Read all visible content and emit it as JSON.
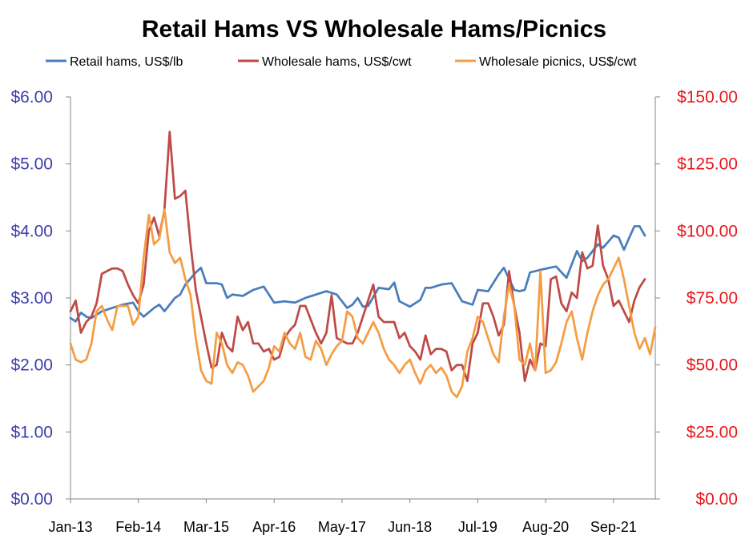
{
  "chart_data": {
    "type": "line",
    "title": "Retail Hams VS Wholesale Hams/Picnics",
    "x_tick_labels": [
      "Jan-13",
      "Feb-14",
      "Mar-15",
      "Apr-16",
      "May-17",
      "Jun-18",
      "Jul-19",
      "Aug-20",
      "Sep-21"
    ],
    "x_range": [
      "Jan-13",
      "May-22"
    ],
    "grid": false,
    "legend_position": "top",
    "y_left": {
      "range": [
        0,
        6
      ],
      "tick_labels": [
        "$0.00",
        "$1.00",
        "$2.00",
        "$3.00",
        "$4.00",
        "$5.00",
        "$6.00"
      ],
      "color": "#3d3dab"
    },
    "y_right": {
      "range": [
        0,
        150
      ],
      "tick_labels": [
        "$0.00",
        "$25.00",
        "$50.00",
        "$75.00",
        "$100.00",
        "$125.00",
        "$150.00"
      ],
      "color": "#e8151b"
    },
    "series": [
      {
        "name": "Retail hams, US$/lb",
        "axis": "left",
        "color": "#4a7ebb",
        "points": [
          [
            "Jan-13",
            2.7
          ],
          [
            "Feb-13",
            2.65
          ],
          [
            "Mar-13",
            2.78
          ],
          [
            "Apr-13",
            2.72
          ],
          [
            "May-13",
            2.7
          ],
          [
            "Jul-13",
            2.8
          ],
          [
            "Sep-13",
            2.85
          ],
          [
            "Nov-13",
            2.9
          ],
          [
            "Jan-14",
            2.93
          ],
          [
            "Feb-14",
            2.8
          ],
          [
            "Mar-14",
            2.72
          ],
          [
            "May-14",
            2.85
          ],
          [
            "Jun-14",
            2.9
          ],
          [
            "Jul-14",
            2.8
          ],
          [
            "Sep-14",
            3.0
          ],
          [
            "Oct-14",
            3.05
          ],
          [
            "Nov-14",
            3.2
          ],
          [
            "Jan-15",
            3.38
          ],
          [
            "Feb-15",
            3.45
          ],
          [
            "Mar-15",
            3.22
          ],
          [
            "May-15",
            3.22
          ],
          [
            "Jun-15",
            3.2
          ],
          [
            "Jul-15",
            3.0
          ],
          [
            "Aug-15",
            3.05
          ],
          [
            "Oct-15",
            3.03
          ],
          [
            "Dec-15",
            3.12
          ],
          [
            "Feb-16",
            3.17
          ],
          [
            "Mar-16",
            3.05
          ],
          [
            "Apr-16",
            2.93
          ],
          [
            "Jun-16",
            2.95
          ],
          [
            "Aug-16",
            2.93
          ],
          [
            "Oct-16",
            3.0
          ],
          [
            "Dec-16",
            3.05
          ],
          [
            "Feb-17",
            3.1
          ],
          [
            "Apr-17",
            3.05
          ],
          [
            "Jun-17",
            2.85
          ],
          [
            "Jul-17",
            2.9
          ],
          [
            "Aug-17",
            3.0
          ],
          [
            "Sep-17",
            2.87
          ],
          [
            "Oct-17",
            2.88
          ],
          [
            "Dec-17",
            3.15
          ],
          [
            "Feb-18",
            3.13
          ],
          [
            "Mar-18",
            3.23
          ],
          [
            "Apr-18",
            2.95
          ],
          [
            "Jun-18",
            2.87
          ],
          [
            "Aug-18",
            2.97
          ],
          [
            "Sep-18",
            3.15
          ],
          [
            "Oct-18",
            3.15
          ],
          [
            "Dec-18",
            3.2
          ],
          [
            "Feb-19",
            3.22
          ],
          [
            "Apr-19",
            2.95
          ],
          [
            "Jun-19",
            2.9
          ],
          [
            "Jul-19",
            3.12
          ],
          [
            "Sep-19",
            3.1
          ],
          [
            "Nov-19",
            3.35
          ],
          [
            "Dec-19",
            3.45
          ],
          [
            "Feb-20",
            3.12
          ],
          [
            "Mar-20",
            3.1
          ],
          [
            "Apr-20",
            3.12
          ],
          [
            "May-20",
            3.38
          ],
          [
            "Jul-20",
            3.42
          ],
          [
            "Oct-20",
            3.47
          ],
          [
            "Dec-20",
            3.3
          ],
          [
            "Feb-21",
            3.7
          ],
          [
            "Mar-21",
            3.55
          ],
          [
            "Apr-21",
            3.6
          ],
          [
            "Jun-21",
            3.8
          ],
          [
            "Jul-21",
            3.75
          ],
          [
            "Sep-21",
            3.93
          ],
          [
            "Oct-21",
            3.9
          ],
          [
            "Nov-21",
            3.72
          ],
          [
            "Jan-22",
            4.07
          ],
          [
            "Feb-22",
            4.07
          ],
          [
            "Mar-22",
            3.93
          ]
        ]
      },
      {
        "name": "Wholesale hams, US$/cwt",
        "axis": "right",
        "color": "#be4b48",
        "points": [
          [
            "Jan-13",
            70
          ],
          [
            "Feb-13",
            74
          ],
          [
            "Mar-13",
            62
          ],
          [
            "Apr-13",
            66
          ],
          [
            "May-13",
            68
          ],
          [
            "Jun-13",
            73
          ],
          [
            "Jul-13",
            84
          ],
          [
            "Aug-13",
            85
          ],
          [
            "Sep-13",
            86
          ],
          [
            "Oct-13",
            86
          ],
          [
            "Nov-13",
            85
          ],
          [
            "Dec-13",
            80
          ],
          [
            "Jan-14",
            76
          ],
          [
            "Feb-14",
            73
          ],
          [
            "Mar-14",
            80
          ],
          [
            "Apr-14",
            100
          ],
          [
            "May-14",
            105
          ],
          [
            "Jun-14",
            98
          ],
          [
            "Jul-14",
            108
          ],
          [
            "Aug-14",
            137
          ],
          [
            "Sep-14",
            112
          ],
          [
            "Oct-14",
            113
          ],
          [
            "Nov-14",
            115
          ],
          [
            "Dec-14",
            95
          ],
          [
            "Jan-15",
            78
          ],
          [
            "Feb-15",
            68
          ],
          [
            "Mar-15",
            58
          ],
          [
            "Apr-15",
            49
          ],
          [
            "May-15",
            50
          ],
          [
            "Jun-15",
            62
          ],
          [
            "Jul-15",
            57
          ],
          [
            "Aug-15",
            55
          ],
          [
            "Sep-15",
            68
          ],
          [
            "Oct-15",
            63
          ],
          [
            "Nov-15",
            66
          ],
          [
            "Dec-15",
            58
          ],
          [
            "Jan-16",
            58
          ],
          [
            "Feb-16",
            55
          ],
          [
            "Mar-16",
            56
          ],
          [
            "Apr-16",
            52
          ],
          [
            "May-16",
            53
          ],
          [
            "Jun-16",
            60
          ],
          [
            "Jul-16",
            63
          ],
          [
            "Aug-16",
            65
          ],
          [
            "Sep-16",
            72
          ],
          [
            "Oct-16",
            72
          ],
          [
            "Nov-16",
            67
          ],
          [
            "Dec-16",
            62
          ],
          [
            "Jan-17",
            58
          ],
          [
            "Feb-17",
            62
          ],
          [
            "Mar-17",
            76
          ],
          [
            "Apr-17",
            60
          ],
          [
            "May-17",
            59
          ],
          [
            "Jun-17",
            58
          ],
          [
            "Jul-17",
            58
          ],
          [
            "Aug-17",
            62
          ],
          [
            "Sep-17",
            68
          ],
          [
            "Oct-17",
            74
          ],
          [
            "Nov-17",
            80
          ],
          [
            "Dec-17",
            68
          ],
          [
            "Jan-18",
            66
          ],
          [
            "Feb-18",
            66
          ],
          [
            "Mar-18",
            66
          ],
          [
            "Apr-18",
            60
          ],
          [
            "May-18",
            62
          ],
          [
            "Jun-18",
            57
          ],
          [
            "Jul-18",
            55
          ],
          [
            "Aug-18",
            52
          ],
          [
            "Sep-18",
            61
          ],
          [
            "Oct-18",
            54
          ],
          [
            "Nov-18",
            56
          ],
          [
            "Dec-18",
            56
          ],
          [
            "Jan-19",
            55
          ],
          [
            "Feb-19",
            48
          ],
          [
            "Mar-19",
            50
          ],
          [
            "Apr-19",
            50
          ],
          [
            "May-19",
            44
          ],
          [
            "Jun-19",
            58
          ],
          [
            "Jul-19",
            62
          ],
          [
            "Aug-19",
            73
          ],
          [
            "Sep-19",
            73
          ],
          [
            "Oct-19",
            68
          ],
          [
            "Nov-19",
            61
          ],
          [
            "Dec-19",
            65
          ],
          [
            "Jan-20",
            85
          ],
          [
            "Feb-20",
            72
          ],
          [
            "Mar-20",
            62
          ],
          [
            "Apr-20",
            44
          ],
          [
            "May-20",
            52
          ],
          [
            "Jun-20",
            48
          ],
          [
            "Jul-20",
            58
          ],
          [
            "Aug-20",
            57
          ],
          [
            "Sep-20",
            82
          ],
          [
            "Oct-20",
            83
          ],
          [
            "Nov-20",
            73
          ],
          [
            "Dec-20",
            70
          ],
          [
            "Jan-21",
            77
          ],
          [
            "Feb-21",
            75
          ],
          [
            "Mar-21",
            92
          ],
          [
            "Apr-21",
            86
          ],
          [
            "May-21",
            87
          ],
          [
            "Jun-21",
            102
          ],
          [
            "Jul-21",
            87
          ],
          [
            "Aug-21",
            82
          ],
          [
            "Sep-21",
            72
          ],
          [
            "Oct-21",
            74
          ],
          [
            "Nov-21",
            70
          ],
          [
            "Dec-21",
            66
          ],
          [
            "Jan-22",
            74
          ],
          [
            "Feb-22",
            79
          ],
          [
            "Mar-22",
            82
          ]
        ]
      },
      {
        "name": "Wholesale picnics, US$/cwt",
        "axis": "right",
        "color": "#f59d43",
        "points": [
          [
            "Jan-13",
            58
          ],
          [
            "Feb-13",
            52
          ],
          [
            "Mar-13",
            51
          ],
          [
            "Apr-13",
            52
          ],
          [
            "May-13",
            58
          ],
          [
            "Jun-13",
            70
          ],
          [
            "Jul-13",
            72
          ],
          [
            "Aug-13",
            67
          ],
          [
            "Sep-13",
            63
          ],
          [
            "Oct-13",
            72
          ],
          [
            "Nov-13",
            72
          ],
          [
            "Dec-13",
            72
          ],
          [
            "Jan-14",
            65
          ],
          [
            "Feb-14",
            68
          ],
          [
            "Mar-14",
            90
          ],
          [
            "Apr-14",
            106
          ],
          [
            "May-14",
            95
          ],
          [
            "Jun-14",
            97
          ],
          [
            "Jul-14",
            108
          ],
          [
            "Aug-14",
            92
          ],
          [
            "Sep-14",
            88
          ],
          [
            "Oct-14",
            90
          ],
          [
            "Nov-14",
            82
          ],
          [
            "Dec-14",
            76
          ],
          [
            "Jan-15",
            60
          ],
          [
            "Feb-15",
            48
          ],
          [
            "Mar-15",
            44
          ],
          [
            "Apr-15",
            43
          ],
          [
            "May-15",
            62
          ],
          [
            "Jun-15",
            58
          ],
          [
            "Jul-15",
            50
          ],
          [
            "Aug-15",
            47
          ],
          [
            "Sep-15",
            51
          ],
          [
            "Oct-15",
            50
          ],
          [
            "Nov-15",
            46
          ],
          [
            "Dec-15",
            40
          ],
          [
            "Jan-16",
            42
          ],
          [
            "Feb-16",
            44
          ],
          [
            "Mar-16",
            49
          ],
          [
            "Apr-16",
            57
          ],
          [
            "May-16",
            55
          ],
          [
            "Jun-16",
            62
          ],
          [
            "Jul-16",
            58
          ],
          [
            "Aug-16",
            56
          ],
          [
            "Sep-16",
            62
          ],
          [
            "Oct-16",
            53
          ],
          [
            "Nov-16",
            52
          ],
          [
            "Dec-16",
            59
          ],
          [
            "Jan-17",
            56
          ],
          [
            "Feb-17",
            50
          ],
          [
            "Mar-17",
            54
          ],
          [
            "Apr-17",
            57
          ],
          [
            "May-17",
            59
          ],
          [
            "Jun-17",
            70
          ],
          [
            "Jul-17",
            68
          ],
          [
            "Aug-17",
            60
          ],
          [
            "Sep-17",
            58
          ],
          [
            "Oct-17",
            62
          ],
          [
            "Nov-17",
            66
          ],
          [
            "Dec-17",
            62
          ],
          [
            "Jan-18",
            56
          ],
          [
            "Feb-18",
            52
          ],
          [
            "Mar-18",
            50
          ],
          [
            "Apr-18",
            47
          ],
          [
            "May-18",
            50
          ],
          [
            "Jun-18",
            52
          ],
          [
            "Jul-18",
            47
          ],
          [
            "Aug-18",
            43
          ],
          [
            "Sep-18",
            48
          ],
          [
            "Oct-18",
            50
          ],
          [
            "Nov-18",
            47
          ],
          [
            "Dec-18",
            49
          ],
          [
            "Jan-19",
            46
          ],
          [
            "Feb-19",
            40
          ],
          [
            "Mar-19",
            38
          ],
          [
            "Apr-19",
            42
          ],
          [
            "May-19",
            55
          ],
          [
            "Jun-19",
            60
          ],
          [
            "Jul-19",
            68
          ],
          [
            "Aug-19",
            66
          ],
          [
            "Sep-19",
            60
          ],
          [
            "Oct-19",
            54
          ],
          [
            "Nov-19",
            51
          ],
          [
            "Dec-19",
            68
          ],
          [
            "Jan-20",
            80
          ],
          [
            "Feb-20",
            72
          ],
          [
            "Mar-20",
            52
          ],
          [
            "Apr-20",
            50
          ],
          [
            "May-20",
            58
          ],
          [
            "Jun-20",
            48
          ],
          [
            "Jul-20",
            85
          ],
          [
            "Aug-20",
            47
          ],
          [
            "Sep-20",
            48
          ],
          [
            "Oct-20",
            51
          ],
          [
            "Nov-20",
            58
          ],
          [
            "Dec-20",
            66
          ],
          [
            "Jan-21",
            70
          ],
          [
            "Feb-21",
            60
          ],
          [
            "Mar-21",
            52
          ],
          [
            "Apr-21",
            62
          ],
          [
            "May-21",
            70
          ],
          [
            "Jun-21",
            76
          ],
          [
            "Jul-21",
            80
          ],
          [
            "Aug-21",
            82
          ],
          [
            "Sep-21",
            86
          ],
          [
            "Oct-21",
            90
          ],
          [
            "Nov-21",
            82
          ],
          [
            "Dec-21",
            72
          ],
          [
            "Jan-22",
            62
          ],
          [
            "Feb-22",
            56
          ],
          [
            "Mar-22",
            60
          ],
          [
            "Apr-22",
            54
          ],
          [
            "May-22",
            64
          ]
        ]
      }
    ]
  }
}
